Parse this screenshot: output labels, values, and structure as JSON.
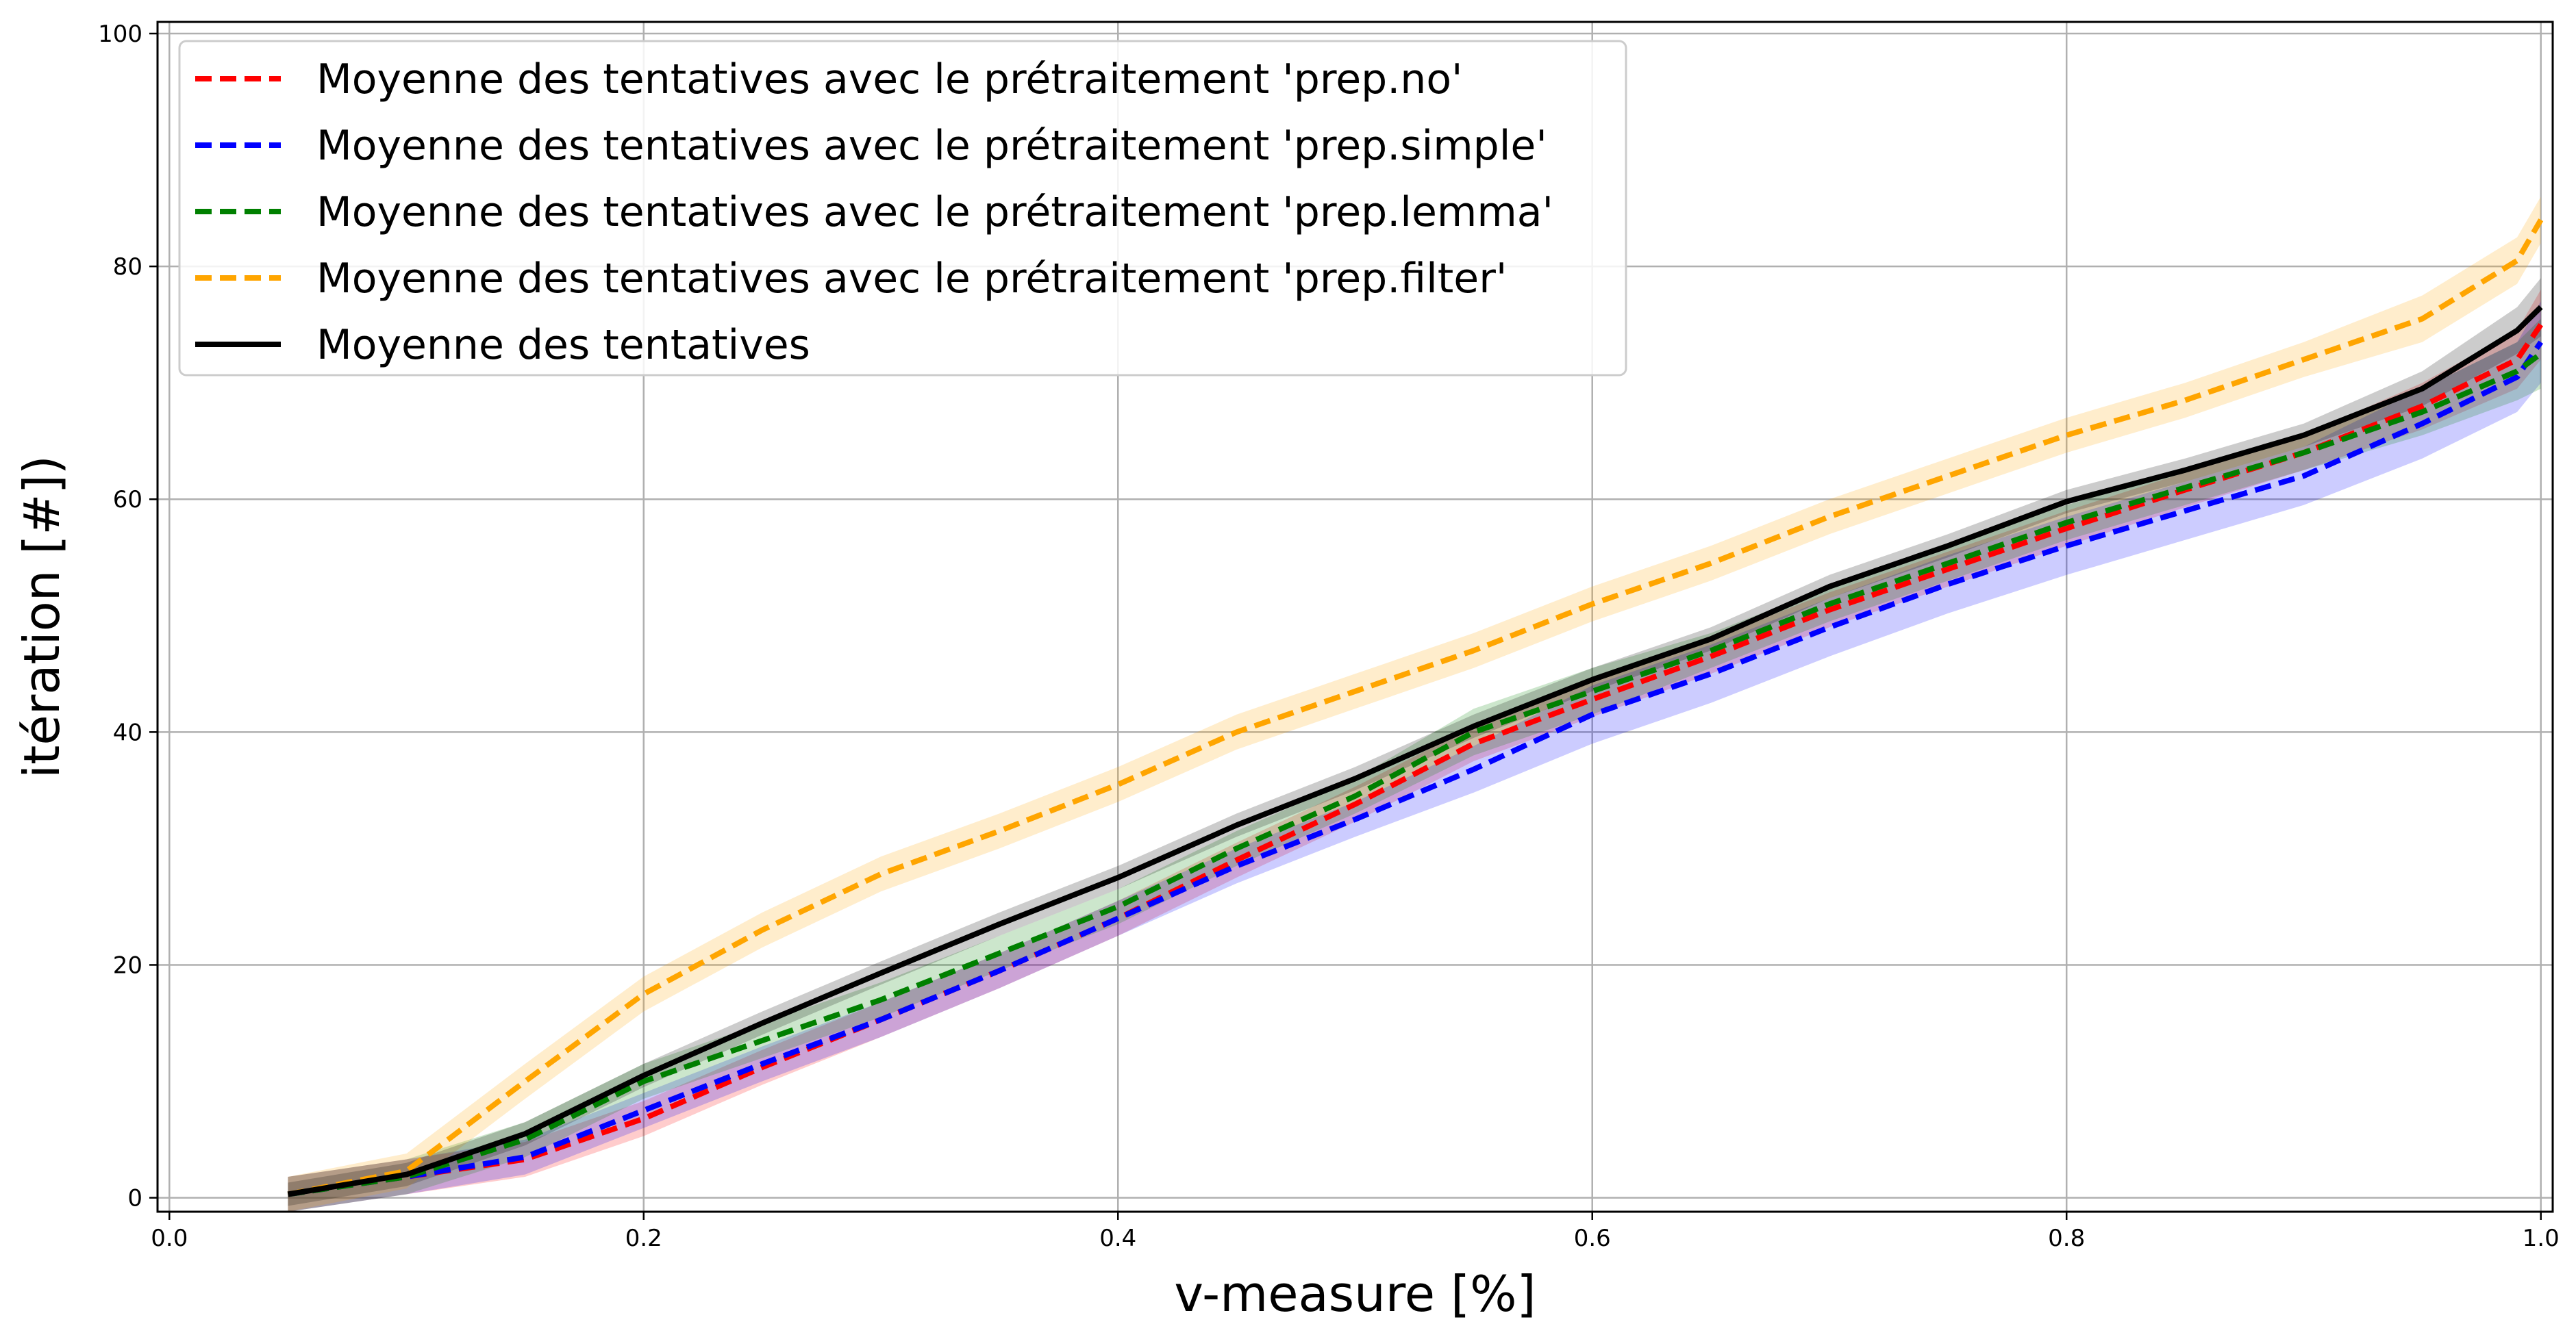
{
  "chart_data": {
    "type": "line",
    "xlabel": "v-measure [%]",
    "ylabel": "itération [#])",
    "xlim": [
      -0.005,
      1.005
    ],
    "ylim": [
      -1.2,
      101
    ],
    "xticks": [
      0.0,
      0.2,
      0.4,
      0.6,
      0.8,
      1.0
    ],
    "xtick_labels": [
      "0.0",
      "0.2",
      "0.4",
      "0.6",
      "0.8",
      "1.0"
    ],
    "yticks": [
      0,
      20,
      40,
      60,
      80,
      100
    ],
    "ytick_labels": [
      "0",
      "20",
      "40",
      "60",
      "80",
      "100"
    ],
    "grid": true,
    "legend_position": "top-left",
    "x": [
      0.05,
      0.1,
      0.15,
      0.2,
      0.25,
      0.3,
      0.35,
      0.4,
      0.45,
      0.5,
      0.55,
      0.6,
      0.65,
      0.7,
      0.75,
      0.8,
      0.85,
      0.9,
      0.95,
      0.99,
      1.0
    ],
    "series": [
      {
        "name": "Moyenne des tentatives avec le prétraitement 'prep.no'",
        "color": "#ff0000",
        "dash": "dashed",
        "values": [
          0.3,
          1.8,
          3.3,
          6.8,
          11.2,
          15.3,
          19.5,
          24.0,
          29.0,
          33.8,
          39.0,
          42.8,
          46.5,
          50.5,
          54.0,
          57.5,
          60.8,
          64.0,
          68.0,
          72.0,
          75.0
        ],
        "band": [
          1.5,
          1.5,
          1.5,
          1.5,
          1.5,
          1.5,
          1.5,
          1.5,
          1.5,
          1.5,
          1.5,
          1.5,
          1.5,
          1.5,
          1.5,
          1.5,
          1.5,
          1.5,
          2.0,
          2.5,
          3.0
        ]
      },
      {
        "name": "Moyenne des tentatives avec le prétraitement 'prep.simple'",
        "color": "#0000ff",
        "dash": "dashed",
        "values": [
          0.3,
          1.8,
          3.5,
          7.5,
          11.5,
          15.3,
          19.5,
          24.0,
          28.5,
          32.5,
          36.8,
          41.5,
          45.0,
          49.0,
          52.7,
          56.0,
          59.0,
          62.0,
          66.5,
          70.5,
          73.5
        ],
        "band": [
          1.5,
          1.5,
          1.5,
          1.5,
          1.5,
          1.5,
          1.5,
          1.5,
          1.5,
          1.5,
          2.0,
          2.5,
          2.5,
          2.5,
          2.5,
          2.5,
          2.5,
          2.5,
          3.0,
          3.0,
          3.5
        ]
      },
      {
        "name": "Moyenne des tentatives avec le prétraitement 'prep.lemma'",
        "color": "#008000",
        "dash": "dashed",
        "values": [
          0.3,
          1.8,
          5.0,
          10.0,
          13.5,
          17.0,
          21.0,
          25.0,
          30.0,
          34.5,
          40.0,
          43.5,
          47.0,
          51.0,
          54.5,
          58.0,
          61.0,
          64.0,
          67.5,
          71.0,
          72.5
        ],
        "band": [
          1.5,
          1.5,
          1.5,
          1.5,
          1.5,
          1.5,
          1.5,
          1.5,
          1.5,
          1.5,
          2.0,
          2.0,
          1.5,
          1.5,
          1.5,
          1.5,
          1.5,
          1.5,
          2.0,
          2.5,
          3.0
        ]
      },
      {
        "name": "Moyenne des tentatives avec le prétraitement 'prep.filter'",
        "color": "#ffa500",
        "dash": "dashed",
        "values": [
          0.3,
          2.3,
          10.0,
          17.5,
          23.0,
          27.8,
          31.5,
          35.5,
          40.0,
          43.5,
          47.0,
          51.0,
          54.5,
          58.5,
          62.0,
          65.5,
          68.5,
          72.0,
          75.5,
          80.5,
          84.0
        ],
        "band": [
          1.5,
          1.5,
          1.5,
          1.5,
          1.5,
          1.5,
          1.5,
          1.5,
          1.5,
          1.5,
          1.5,
          1.5,
          1.5,
          1.5,
          1.5,
          1.5,
          1.5,
          1.5,
          2.0,
          2.0,
          2.0
        ]
      },
      {
        "name": "Moyenne des tentatives",
        "color": "#000000",
        "dash": "solid",
        "values": [
          0.3,
          2.0,
          5.5,
          10.5,
          15.0,
          19.3,
          23.5,
          27.5,
          32.0,
          36.0,
          40.5,
          44.5,
          48.0,
          52.5,
          56.0,
          59.8,
          62.5,
          65.5,
          69.5,
          74.5,
          76.5
        ],
        "band": [
          1.0,
          1.0,
          1.0,
          1.0,
          1.0,
          1.0,
          1.0,
          1.0,
          1.0,
          1.0,
          1.0,
          1.0,
          1.0,
          1.0,
          1.0,
          1.0,
          1.0,
          1.0,
          1.5,
          2.0,
          2.5
        ]
      }
    ]
  }
}
